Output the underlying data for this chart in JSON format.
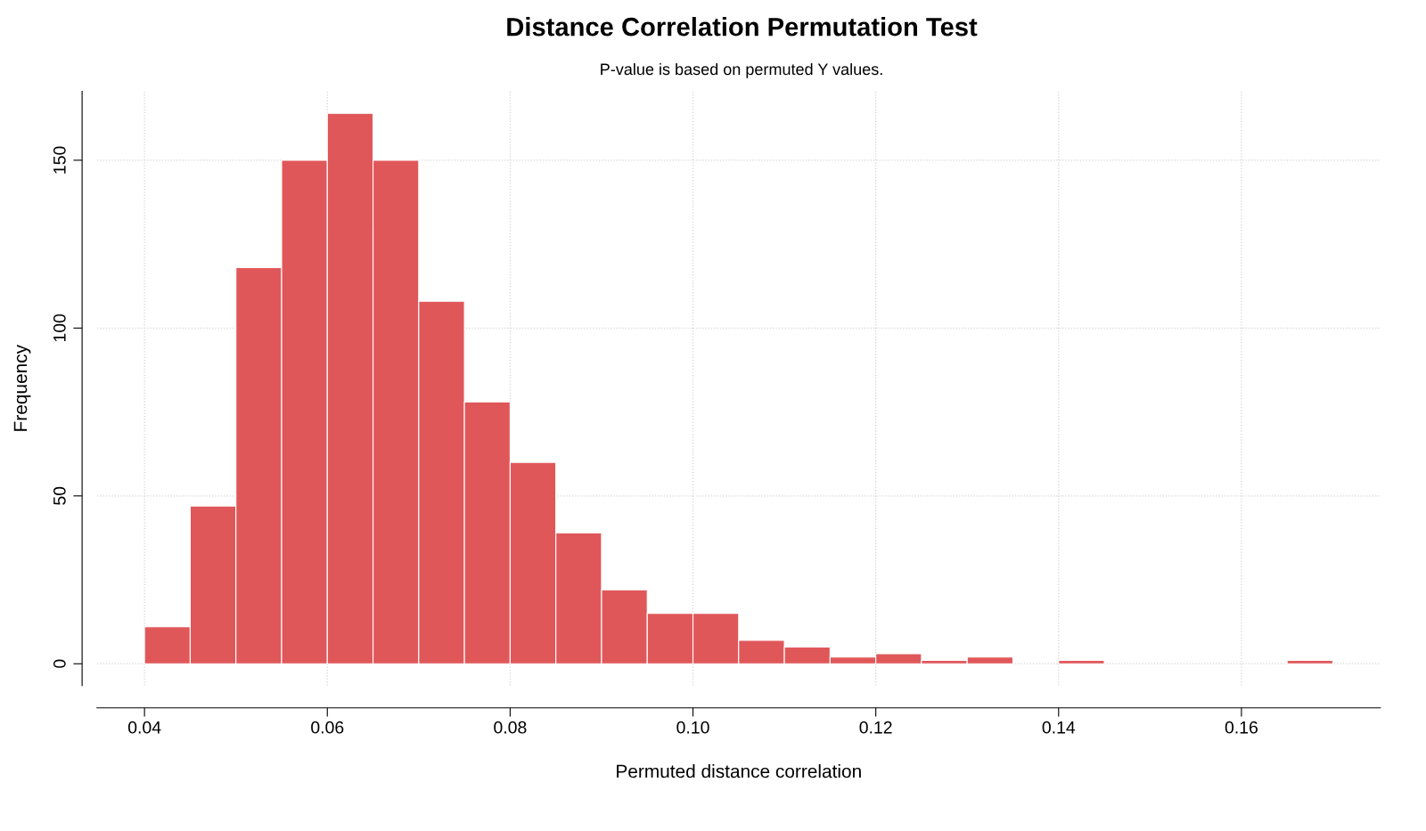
{
  "chart_data": {
    "type": "histogram",
    "title": "Distance Correlation Permutation Test",
    "subtitle": "P-value is based on permuted Y values.",
    "xlabel": "Permuted distance correlation",
    "ylabel": "Frequency",
    "bins": [
      0.04,
      0.045,
      0.05,
      0.055,
      0.06,
      0.065,
      0.07,
      0.075,
      0.08,
      0.085,
      0.09,
      0.095,
      0.1,
      0.105,
      0.11,
      0.115,
      0.12,
      0.125,
      0.13,
      0.135,
      0.14,
      0.145,
      0.15,
      0.155,
      0.16,
      0.165,
      0.17
    ],
    "values": [
      11,
      47,
      118,
      150,
      164,
      150,
      108,
      78,
      60,
      39,
      22,
      15,
      15,
      7,
      5,
      2,
      3,
      1,
      2,
      0,
      1,
      0,
      0,
      0,
      0,
      1
    ],
    "color": "#e0575a",
    "xlim": [
      0.0348,
      0.1752
    ],
    "ylim": [
      -6.5,
      170.5
    ],
    "xticks": [
      {
        "value": 0.04,
        "label": "0.04"
      },
      {
        "value": 0.06,
        "label": "0.06"
      },
      {
        "value": 0.08,
        "label": "0.08"
      },
      {
        "value": 0.1,
        "label": "0.10"
      },
      {
        "value": 0.12,
        "label": "0.12"
      },
      {
        "value": 0.14,
        "label": "0.14"
      },
      {
        "value": 0.16,
        "label": "0.16"
      }
    ],
    "yticks": [
      0,
      50,
      100,
      150
    ],
    "grid": true
  }
}
